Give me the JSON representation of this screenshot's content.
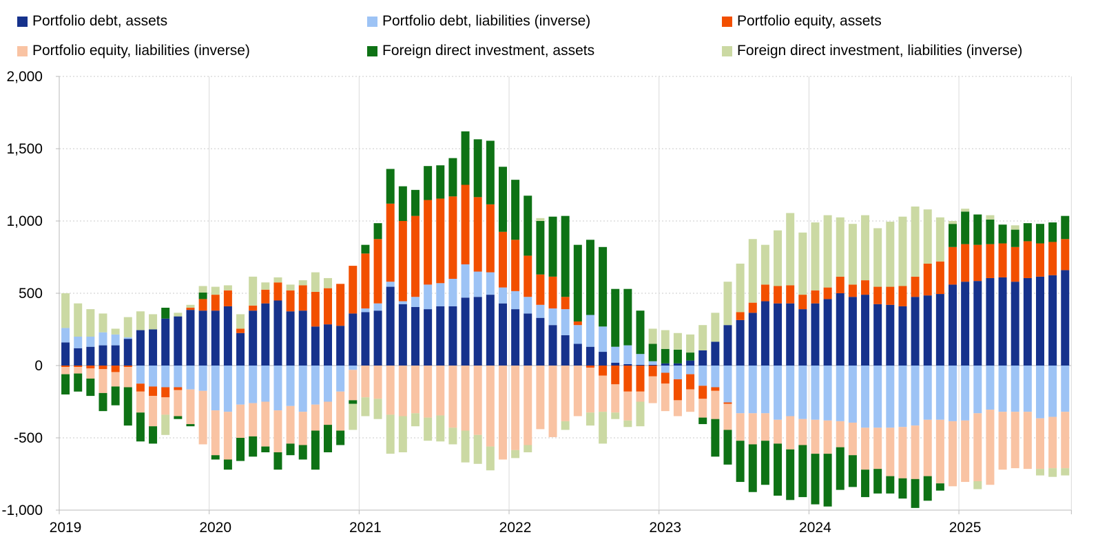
{
  "legend": {
    "items": [
      {
        "label": "Portfolio debt, assets",
        "color": "#16328C"
      },
      {
        "label": "Portfolio debt, liabilities (inverse)",
        "color": "#9DC3F5"
      },
      {
        "label": "Portfolio equity, assets",
        "color": "#F24F00"
      },
      {
        "label": "Portfolio equity, liabilities (inverse)",
        "color": "#F9C3A3"
      },
      {
        "label": "Foreign direct investment, assets",
        "color": "#0E7215"
      },
      {
        "label": "Foreign direct investment, liabilities (inverse)",
        "color": "#CBD9A3"
      }
    ]
  },
  "chart_data": {
    "type": "bar",
    "stacked": true,
    "title": "",
    "xlabel": "",
    "ylabel": "",
    "grid": true,
    "legend_position": "top",
    "y_axis": {
      "min": -1000,
      "max": 2000,
      "ticks": [
        2000,
        1500,
        1000,
        500,
        0,
        -500,
        -1000
      ],
      "labels": [
        "2,000",
        "1,500",
        "1,000",
        "500",
        "0",
        "-500",
        "-1,000"
      ]
    },
    "x_axis": {
      "tick_labels": [
        "2019",
        "2020",
        "2021",
        "2022",
        "2023",
        "2024",
        "2025"
      ]
    },
    "months": [
      "2019-01",
      "2019-02",
      "2019-03",
      "2019-04",
      "2019-05",
      "2019-06",
      "2019-07",
      "2019-08",
      "2019-09",
      "2019-10",
      "2019-11",
      "2019-12",
      "2020-01",
      "2020-02",
      "2020-03",
      "2020-04",
      "2020-05",
      "2020-06",
      "2020-07",
      "2020-08",
      "2020-09",
      "2020-10",
      "2020-11",
      "2020-12",
      "2021-01",
      "2021-02",
      "2021-03",
      "2021-04",
      "2021-05",
      "2021-06",
      "2021-07",
      "2021-08",
      "2021-09",
      "2021-10",
      "2021-11",
      "2021-12",
      "2022-01",
      "2022-02",
      "2022-03",
      "2022-04",
      "2022-05",
      "2022-06",
      "2022-07",
      "2022-08",
      "2022-09",
      "2022-10",
      "2022-11",
      "2022-12",
      "2023-01",
      "2023-02",
      "2023-03",
      "2023-04",
      "2023-05",
      "2023-06",
      "2023-07",
      "2023-08",
      "2023-09",
      "2023-10",
      "2023-11",
      "2023-12",
      "2024-01",
      "2024-02",
      "2024-03",
      "2024-04",
      "2024-05",
      "2024-06",
      "2024-07",
      "2024-08",
      "2024-09",
      "2024-10",
      "2024-11",
      "2024-12",
      "2025-01",
      "2025-02",
      "2025-03",
      "2025-04",
      "2025-05",
      "2025-06",
      "2025-07",
      "2025-08",
      "2025-09"
    ],
    "series": [
      {
        "name": "Portfolio debt, assets",
        "color": "#16328C",
        "values": [
          160,
          120,
          130,
          140,
          140,
          185,
          245,
          250,
          325,
          340,
          385,
          380,
          380,
          410,
          225,
          380,
          430,
          450,
          375,
          380,
          270,
          285,
          275,
          360,
          370,
          380,
          545,
          425,
          405,
          390,
          410,
          410,
          470,
          475,
          490,
          430,
          390,
          360,
          330,
          280,
          210,
          150,
          130,
          95,
          20,
          10,
          5,
          5,
          15,
          15,
          35,
          105,
          165,
          280,
          315,
          365,
          445,
          430,
          430,
          390,
          430,
          460,
          500,
          475,
          490,
          425,
          420,
          410,
          475,
          485,
          495,
          560,
          580,
          585,
          605,
          610,
          580,
          605,
          615,
          625,
          660
        ]
      },
      {
        "name": "Portfolio debt, liabilities (inverse)",
        "color": "#9DC3F5",
        "values": [
          100,
          80,
          70,
          90,
          75,
          10,
          -125,
          -145,
          -150,
          -150,
          -165,
          -175,
          -310,
          -320,
          -270,
          -260,
          -250,
          -310,
          -280,
          -320,
          -270,
          -250,
          -180,
          -30,
          25,
          50,
          35,
          20,
          70,
          170,
          160,
          190,
          230,
          175,
          155,
          110,
          125,
          115,
          90,
          115,
          180,
          130,
          220,
          175,
          110,
          130,
          75,
          25,
          -50,
          -95,
          -60,
          -140,
          -150,
          -255,
          -330,
          -330,
          -330,
          -375,
          -350,
          -370,
          -375,
          -380,
          -385,
          -395,
          -430,
          -430,
          -430,
          -425,
          -415,
          -375,
          -375,
          -385,
          -380,
          -330,
          -305,
          -320,
          -320,
          -320,
          -365,
          -355,
          -320
        ]
      },
      {
        "name": "Portfolio equity, assets",
        "color": "#F24F00",
        "values": [
          -10,
          -10,
          -20,
          -25,
          -45,
          -10,
          -55,
          -65,
          -70,
          -20,
          15,
          80,
          110,
          110,
          30,
          35,
          95,
          125,
          145,
          175,
          240,
          250,
          290,
          330,
          380,
          445,
          540,
          555,
          560,
          585,
          585,
          570,
          550,
          515,
          470,
          385,
          355,
          285,
          210,
          220,
          85,
          25,
          -15,
          -70,
          -130,
          -180,
          -180,
          -75,
          -75,
          -145,
          -105,
          -90,
          -25,
          -10,
          55,
          70,
          115,
          120,
          125,
          100,
          90,
          80,
          115,
          85,
          100,
          120,
          125,
          140,
          140,
          220,
          225,
          260,
          260,
          250,
          235,
          235,
          240,
          255,
          230,
          230,
          215
        ]
      },
      {
        "name": "Portfolio equity, liabilities (inverse)",
        "color": "#F9C3A3",
        "values": [
          -50,
          -45,
          -70,
          -165,
          -100,
          -140,
          -145,
          -210,
          -120,
          -180,
          -240,
          -370,
          -310,
          -330,
          -230,
          -230,
          -310,
          -290,
          -260,
          -230,
          -180,
          -160,
          -270,
          -210,
          -220,
          -230,
          -340,
          -350,
          -330,
          -360,
          -345,
          -430,
          -450,
          -480,
          -560,
          -650,
          -585,
          -550,
          -440,
          -495,
          -385,
          -350,
          -310,
          -250,
          -195,
          -200,
          -70,
          -185,
          -190,
          -110,
          -155,
          -130,
          -195,
          -180,
          -190,
          -215,
          -190,
          -165,
          -230,
          -180,
          -235,
          -230,
          -180,
          -225,
          -290,
          -285,
          -335,
          -355,
          -370,
          -390,
          -440,
          -450,
          -425,
          -470,
          -520,
          -400,
          -390,
          -395,
          -350,
          -355,
          -390
        ]
      },
      {
        "name": "Foreign direct investment, assets",
        "color": "#0E7215",
        "values": [
          -140,
          -125,
          -120,
          -125,
          -130,
          -265,
          -200,
          -120,
          75,
          -20,
          -15,
          45,
          -30,
          -70,
          -160,
          -140,
          -40,
          -120,
          -80,
          -100,
          -270,
          -190,
          -100,
          -25,
          60,
          110,
          240,
          240,
          180,
          235,
          230,
          265,
          370,
          400,
          440,
          450,
          415,
          415,
          370,
          415,
          560,
          530,
          520,
          550,
          400,
          390,
          300,
          120,
          100,
          95,
          55,
          -45,
          -260,
          -240,
          -285,
          -330,
          -305,
          -360,
          -350,
          -360,
          -350,
          -365,
          -295,
          -220,
          -190,
          -170,
          -120,
          -140,
          -200,
          -170,
          -50,
          160,
          225,
          210,
          170,
          130,
          120,
          125,
          135,
          135,
          160
        ]
      },
      {
        "name": "Foreign direct investment, liabilities (inverse)",
        "color": "#CBD9A3",
        "values": [
          240,
          230,
          190,
          130,
          40,
          140,
          130,
          105,
          -140,
          25,
          20,
          45,
          55,
          35,
          100,
          200,
          50,
          35,
          40,
          35,
          135,
          70,
          0,
          -180,
          -130,
          -140,
          -270,
          -250,
          -90,
          -160,
          -180,
          -115,
          -220,
          -200,
          -165,
          0,
          -55,
          -50,
          20,
          0,
          -60,
          0,
          -90,
          -220,
          -45,
          -45,
          -170,
          105,
          130,
          115,
          125,
          175,
          200,
          300,
          335,
          440,
          275,
          385,
          500,
          430,
          470,
          500,
          410,
          420,
          450,
          405,
          450,
          480,
          485,
          375,
          305,
          20,
          20,
          -55,
          30,
          0,
          30,
          0,
          -45,
          -60,
          -50
        ]
      }
    ]
  }
}
